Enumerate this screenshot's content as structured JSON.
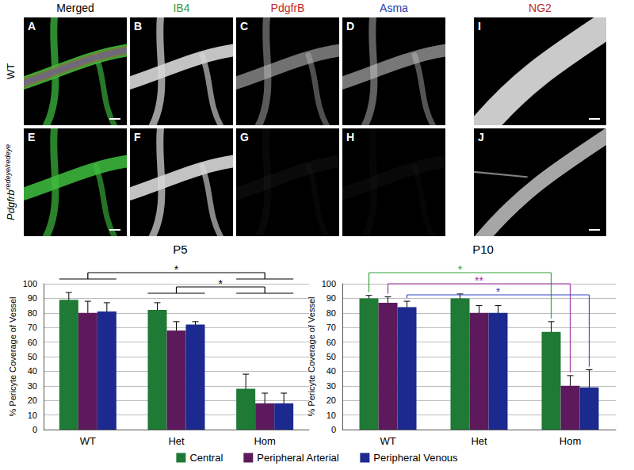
{
  "image_panels": {
    "column_headers": [
      {
        "text": "Merged",
        "color": "#000000"
      },
      {
        "text": "IB4",
        "color": "#3a9a3a"
      },
      {
        "text": "PdgfrB",
        "color": "#c0282d"
      },
      {
        "text": "Asma",
        "color": "#2340b0"
      },
      {
        "text": "NG2",
        "color": "#c0282d"
      }
    ],
    "row_labels": [
      {
        "text": "WT"
      },
      {
        "text": "Pdgfrb",
        "superscript": "redeye/redeye"
      }
    ],
    "panel_letters": [
      [
        "A",
        "B",
        "C",
        "D",
        "I"
      ],
      [
        "E",
        "F",
        "G",
        "H",
        "J"
      ]
    ]
  },
  "chart_data": [
    {
      "type": "bar",
      "title": "P5",
      "categories": [
        "WT",
        "Het",
        "Hom"
      ],
      "y_label": "% Pericyte Coverage of Vessel",
      "ylim": [
        0,
        100
      ],
      "yticks": [
        0,
        10,
        20,
        30,
        40,
        50,
        60,
        70,
        80,
        90,
        100
      ],
      "grid": true,
      "legend": "bottom",
      "series": [
        {
          "name": "Central",
          "color": "#1e7a34",
          "values": [
            89,
            82,
            28
          ],
          "errors": [
            5,
            5,
            10
          ]
        },
        {
          "name": "Peripheral Arterial",
          "color": "#5c1a5c",
          "values": [
            80,
            68,
            18
          ],
          "errors": [
            8,
            6,
            7
          ]
        },
        {
          "name": "Peripheral Venous",
          "color": "#1c2a8f",
          "values": [
            81,
            72,
            18
          ],
          "errors": [
            6,
            2,
            7
          ]
        }
      ],
      "annotations": [
        {
          "text": "*",
          "from": "WT",
          "to": "Hom",
          "color": "#000000"
        },
        {
          "text": "*",
          "from": "Het",
          "to": "Hom",
          "color": "#000000"
        }
      ]
    },
    {
      "type": "bar",
      "title": "P10",
      "categories": [
        "WT",
        "Het",
        "Hom"
      ],
      "y_label": "% Pericyte Coverage of Vessel",
      "ylim": [
        0,
        100
      ],
      "yticks": [
        0,
        10,
        20,
        30,
        40,
        50,
        60,
        70,
        80,
        90,
        100
      ],
      "grid": true,
      "legend": "bottom",
      "series": [
        {
          "name": "Central",
          "color": "#1e7a34",
          "values": [
            90,
            90,
            67
          ],
          "errors": [
            2,
            3,
            7
          ]
        },
        {
          "name": "Peripheral Arterial",
          "color": "#5c1a5c",
          "values": [
            87,
            80,
            30
          ],
          "errors": [
            4,
            5,
            7
          ]
        },
        {
          "name": "Peripheral Venous",
          "color": "#1c2a8f",
          "values": [
            84,
            80,
            29
          ],
          "errors": [
            4,
            5,
            12
          ]
        }
      ],
      "annotations": [
        {
          "text": "*",
          "from": "WT",
          "to": "Hom",
          "series": "Central",
          "color": "#33a33a"
        },
        {
          "text": "**",
          "from": "WT",
          "to": "Hom",
          "series": "Peripheral Arterial",
          "color": "#a030a0"
        },
        {
          "text": "*",
          "from": "WT",
          "to": "Hom",
          "series": "Peripheral Venous",
          "color": "#3444c4"
        }
      ]
    }
  ]
}
